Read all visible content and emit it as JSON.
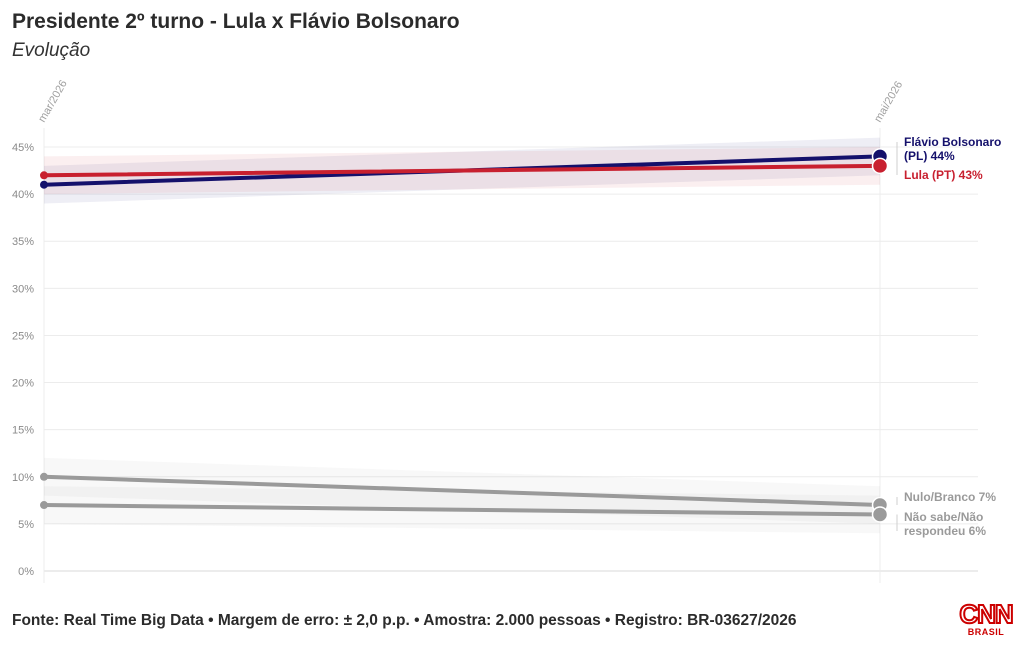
{
  "header": {
    "title": "Presidente 2º turno - Lula x Flávio Bolsonaro",
    "subtitle": "Evolução"
  },
  "footer": {
    "source": "Fonte: Real Time Big Data • Margem de erro: ± 2,0 p.p. • Amostra: 2.000 pessoas • Registro: BR-03627/2026"
  },
  "logo": {
    "main": "CNN",
    "sub": "BRASIL"
  },
  "chart_data": {
    "type": "line",
    "x": [
      "mar/2026",
      "mai/2026"
    ],
    "ylim": [
      0,
      45
    ],
    "y_ticks": [
      {
        "value": 0,
        "label": "0%"
      },
      {
        "value": 5,
        "label": "5%"
      },
      {
        "value": 10,
        "label": "10%"
      },
      {
        "value": 15,
        "label": "15%"
      },
      {
        "value": 20,
        "label": "20%"
      },
      {
        "value": 25,
        "label": "25%"
      },
      {
        "value": 30,
        "label": "30%"
      },
      {
        "value": 35,
        "label": "35%"
      },
      {
        "value": 40,
        "label": "40%"
      },
      {
        "value": 45,
        "label": "45%"
      }
    ],
    "grid": true,
    "margin_of_error": 2,
    "series": [
      {
        "name": "Flávio Bolsonaro (PL)",
        "values": [
          41,
          44
        ],
        "color": "#14106b",
        "end_label": [
          "Flávio Bolsonaro",
          "(PL) 44%"
        ]
      },
      {
        "name": "Lula (PT)",
        "values": [
          42,
          43
        ],
        "color": "#c8202f",
        "end_label": [
          "Lula (PT) 43%"
        ]
      },
      {
        "name": "Nulo/Branco",
        "values": [
          10,
          7
        ],
        "color": "#9a9a9a",
        "end_label": [
          "Nulo/Branco 7%"
        ]
      },
      {
        "name": "Não sabe/Não respondeu",
        "values": [
          7,
          6
        ],
        "color": "#9a9a9a",
        "end_label": [
          "Não sabe/Não",
          "respondeu 6%"
        ]
      }
    ]
  }
}
